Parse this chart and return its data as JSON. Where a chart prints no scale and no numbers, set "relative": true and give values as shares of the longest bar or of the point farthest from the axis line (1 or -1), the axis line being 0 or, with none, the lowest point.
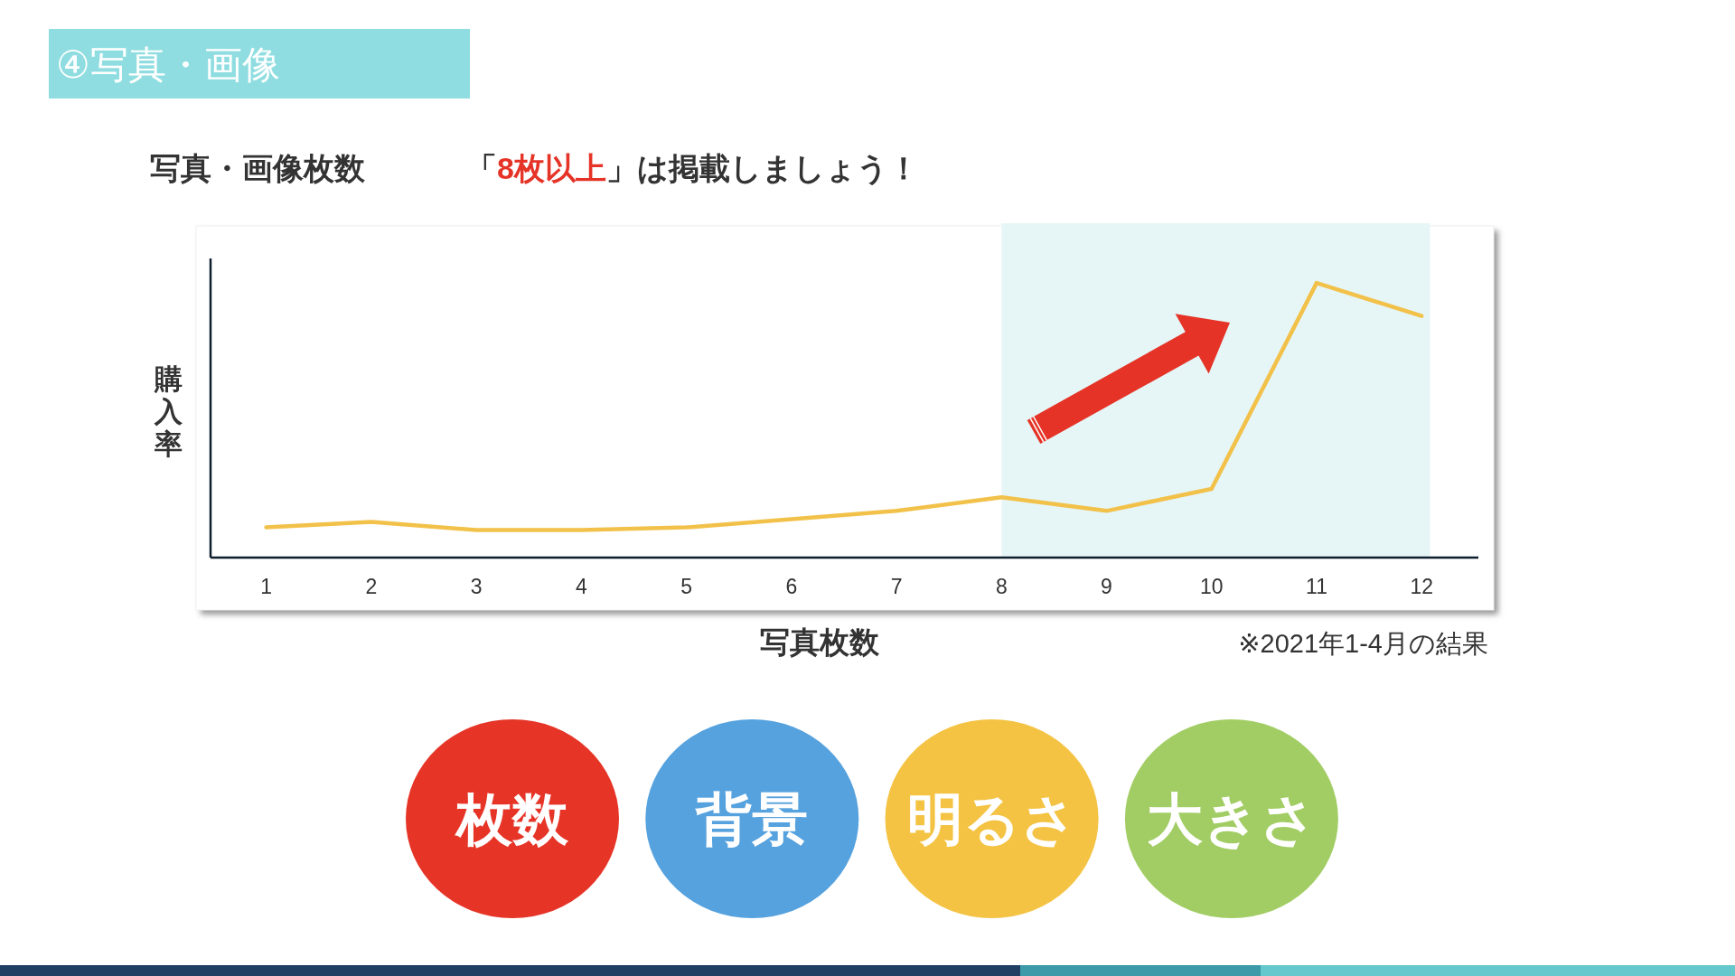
{
  "chart_data": {
    "type": "line",
    "title": "写真・画像枚数",
    "subtitle": "「8枚以上」は掲載しましょう！",
    "xlabel": "写真枚数",
    "ylabel": "購入率",
    "x": [
      1,
      2,
      3,
      4,
      5,
      6,
      7,
      8,
      9,
      10,
      11,
      12
    ],
    "xlim": [
      0.47,
      12.54
    ],
    "xticks": [
      1,
      2,
      3,
      4,
      5,
      6,
      7,
      8,
      9,
      10,
      11,
      12
    ],
    "relative": true,
    "series": [
      {
        "color": "#f2c14a",
        "values": [
          0.11,
          0.13,
          0.1,
          0.1,
          0.11,
          0.14,
          0.17,
          0.22,
          0.17,
          0.25,
          1,
          0.88
        ]
      }
    ],
    "bands": [
      {
        "axis": "x",
        "from": 8,
        "to": 12.08,
        "color": "#e6f6f7"
      }
    ],
    "annotations": [
      "④写真・画像",
      "※2021年1-4月の結果",
      "枚数",
      "背景",
      "明るさ",
      "大きさ"
    ]
  }
}
